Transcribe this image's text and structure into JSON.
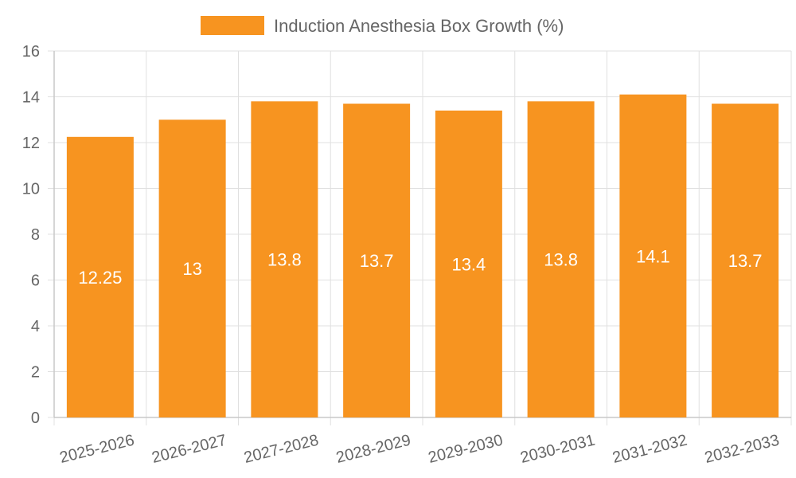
{
  "chart_data": {
    "type": "bar",
    "title": "",
    "xlabel": "",
    "ylabel": "",
    "legend": {
      "placement": "top-center",
      "entries": [
        "Induction Anesthesia Box Growth (%)"
      ]
    },
    "categories": [
      "2025-2026",
      "2026-2027",
      "2027-2028",
      "2028-2029",
      "2029-2030",
      "2030-2031",
      "2031-2032",
      "2032-2033"
    ],
    "series": [
      {
        "name": "Induction Anesthesia Box Growth (%)",
        "values": [
          12.25,
          13,
          13.8,
          13.7,
          13.4,
          13.8,
          14.1,
          13.7
        ],
        "color": "#f79420"
      }
    ],
    "data_labels": [
      "12.25",
      "13",
      "13.8",
      "13.7",
      "13.4",
      "13.8",
      "14.1",
      "13.7"
    ],
    "ylim": [
      0,
      16
    ],
    "yticks": [
      0,
      2,
      4,
      6,
      8,
      10,
      12,
      14,
      16
    ],
    "ytick_labels": [
      "0",
      "2",
      "4",
      "6",
      "8",
      "10",
      "12",
      "14",
      "16"
    ],
    "grid": true,
    "colors": {
      "bar": "#f79420",
      "grid": "#e0e0e0",
      "axis": "#c8c8c8",
      "text": "#666666",
      "data_label": "#ffffff"
    }
  }
}
